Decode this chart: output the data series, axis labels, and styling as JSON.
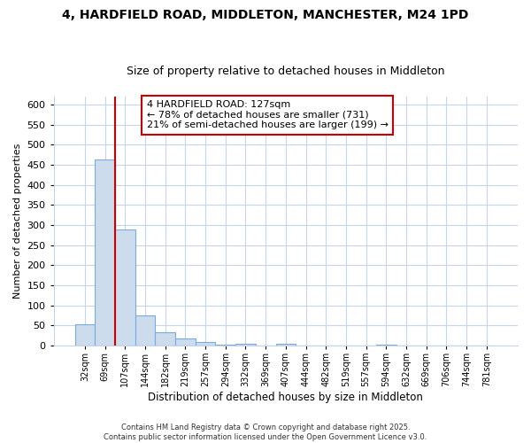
{
  "title": "4, HARDFIELD ROAD, MIDDLETON, MANCHESTER, M24 1PD",
  "subtitle": "Size of property relative to detached houses in Middleton",
  "xlabel": "Distribution of detached houses by size in Middleton",
  "ylabel": "Number of detached properties",
  "bar_labels": [
    "32sqm",
    "69sqm",
    "107sqm",
    "144sqm",
    "182sqm",
    "219sqm",
    "257sqm",
    "294sqm",
    "332sqm",
    "369sqm",
    "407sqm",
    "444sqm",
    "482sqm",
    "519sqm",
    "557sqm",
    "594sqm",
    "632sqm",
    "669sqm",
    "706sqm",
    "744sqm",
    "781sqm"
  ],
  "bar_values": [
    52,
    463,
    290,
    75,
    32,
    18,
    8,
    3,
    4,
    0,
    4,
    0,
    0,
    0,
    0,
    3,
    0,
    0,
    0,
    0,
    0
  ],
  "bar_color": "#ccdcec",
  "bar_edgecolor": "#7aabe0",
  "vline_color": "#cc0000",
  "vline_pos": 1.5,
  "ylim": [
    0,
    620
  ],
  "yticks": [
    0,
    50,
    100,
    150,
    200,
    250,
    300,
    350,
    400,
    450,
    500,
    550,
    600
  ],
  "annotation_title": "4 HARDFIELD ROAD: 127sqm",
  "annotation_line1": "← 78% of detached houses are smaller (731)",
  "annotation_line2": "21% of semi-detached houses are larger (199) →",
  "annotation_box_facecolor": "#ffffff",
  "annotation_box_edgecolor": "#cc0000",
  "footer1": "Contains HM Land Registry data © Crown copyright and database right 2025.",
  "footer2": "Contains public sector information licensed under the Open Government Licence v3.0.",
  "background_color": "#ffffff",
  "grid_color": "#c8d4e8",
  "title_fontsize": 10,
  "subtitle_fontsize": 9,
  "ylabel_fontsize": 8,
  "xlabel_fontsize": 8.5,
  "ytick_fontsize": 8,
  "xtick_fontsize": 7,
  "ann_fontsize": 8,
  "footer_fontsize": 6
}
